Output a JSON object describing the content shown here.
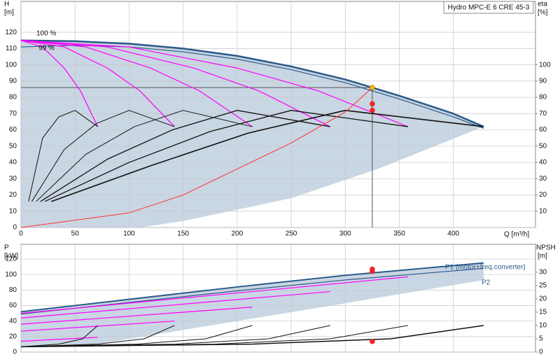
{
  "chart_data": [
    {
      "type": "line",
      "title": "Hydro MPC-E 6 CRE 45-3",
      "y_label": "H",
      "y_unit": "[m]",
      "y2_label": "eta",
      "y2_unit": "[%]",
      "x_label": "Q [m³/h]",
      "annotations": [
        "100 %",
        "99 %"
      ],
      "xlim": [
        0,
        476
      ],
      "xticks": [
        0,
        50,
        100,
        150,
        200,
        250,
        300,
        350,
        400
      ],
      "ylim": [
        0,
        139
      ],
      "yticks": [
        0,
        10,
        20,
        30,
        40,
        50,
        60,
        70,
        80,
        90,
        100,
        110,
        120
      ],
      "y2lim": [
        0,
        139
      ],
      "y2ticks": [
        10,
        20,
        30,
        40,
        50,
        60,
        70,
        80,
        90,
        100
      ],
      "grid": true,
      "area": {
        "color": "#c9d6e3",
        "x": [
          0,
          50,
          100,
          150,
          200,
          250,
          300,
          350,
          400,
          428,
          330,
          250,
          150,
          110,
          20,
          0
        ],
        "values": [
          115,
          114.5,
          113,
          110,
          105.5,
          99,
          91,
          81,
          70,
          62,
          36,
          18,
          4,
          0,
          0,
          0
        ]
      },
      "series": [
        {
          "color": "#2b5a8a",
          "width": 2.5,
          "x": [
            0,
            50,
            100,
            150,
            200,
            250,
            300,
            350,
            400,
            428
          ],
          "values": [
            115,
            114.5,
            113,
            110,
            105.5,
            99,
            91,
            81,
            70,
            62
          ]
        },
        {
          "color": "#2b5a8a",
          "width": 1.2,
          "x": [
            0,
            50,
            100,
            150,
            200,
            250,
            300,
            350,
            400,
            428
          ],
          "values": [
            111,
            112,
            111,
            108,
            103.5,
            97,
            89,
            79,
            68,
            61
          ]
        },
        {
          "color": "#ff00ff",
          "width": 1.2,
          "x": [
            0,
            20,
            40,
            55,
            71
          ],
          "values": [
            115,
            111,
            98,
            84,
            62
          ]
        },
        {
          "color": "#ff00ff",
          "width": 1.2,
          "x": [
            0,
            40,
            80,
            110,
            142
          ],
          "values": [
            115,
            111,
            98,
            84,
            62
          ]
        },
        {
          "color": "#ff00ff",
          "width": 1.2,
          "x": [
            0,
            60,
            120,
            165,
            214
          ],
          "values": [
            115,
            111,
            98,
            84,
            62
          ]
        },
        {
          "color": "#ff00ff",
          "width": 1.2,
          "x": [
            0,
            80,
            160,
            220,
            286
          ],
          "values": [
            115,
            111,
            98,
            84,
            62
          ]
        },
        {
          "color": "#ff00ff",
          "width": 1.2,
          "x": [
            0,
            100,
            200,
            275,
            358
          ],
          "values": [
            115,
            111,
            98,
            84,
            62
          ]
        },
        {
          "color": "#111111",
          "width": 1,
          "x": [
            7,
            20,
            35,
            50,
            71
          ],
          "values": [
            16,
            55,
            68,
            72,
            62
          ]
        },
        {
          "color": "#111111",
          "width": 1,
          "x": [
            10,
            40,
            70,
            100,
            142
          ],
          "values": [
            16,
            48,
            64,
            72,
            62
          ]
        },
        {
          "color": "#111111",
          "width": 1,
          "x": [
            14,
            60,
            105,
            150,
            214
          ],
          "values": [
            16,
            45,
            62,
            72,
            62
          ]
        },
        {
          "color": "#111111",
          "width": 1.3,
          "x": [
            18,
            80,
            140,
            200,
            286
          ],
          "values": [
            16,
            42,
            60,
            72,
            62
          ]
        },
        {
          "color": "#111111",
          "width": 1.3,
          "x": [
            22,
            100,
            175,
            250,
            358
          ],
          "values": [
            16,
            40,
            59,
            72,
            62
          ]
        },
        {
          "color": "#111111",
          "width": 1.6,
          "x": [
            28,
            120,
            210,
            300,
            428
          ],
          "values": [
            16,
            38,
            58,
            72,
            62
          ]
        },
        {
          "color": "#ff3030",
          "width": 1,
          "x": [
            0,
            100,
            150,
            200,
            250,
            300,
            325
          ],
          "values": [
            0,
            9,
            20,
            36,
            52,
            71,
            86
          ]
        }
      ],
      "operating_point": {
        "x": 325,
        "y": 86
      },
      "points": [
        {
          "x": 325,
          "y": 86,
          "color": "#f5b800"
        },
        {
          "x": 325,
          "y": 76,
          "color": "#ff2020"
        },
        {
          "x": 325,
          "y": 72,
          "color": "#ff2020"
        }
      ]
    },
    {
      "type": "line",
      "y_label": "P",
      "y_unit": "[kW]",
      "y2_label": "NPSH",
      "y2_unit": "[m]",
      "annotations": [
        "P1 (motor+freq.converter)",
        "P2"
      ],
      "xlim": [
        0,
        476
      ],
      "ylim": [
        0,
        139
      ],
      "yticks": [
        0,
        20,
        40,
        60,
        80,
        100,
        120
      ],
      "y2lim": [
        0,
        40.5
      ],
      "y2ticks": [
        0,
        5,
        10,
        15,
        20,
        25,
        30
      ],
      "grid": true,
      "area": {
        "color": "#c9d6e3",
        "x": [
          0,
          100,
          200,
          300,
          428,
          428,
          300,
          200,
          100,
          60,
          0
        ],
        "values": [
          52,
          68,
          84,
          99,
          115,
          93,
          63,
          40,
          17,
          8,
          8
        ]
      },
      "series": [
        {
          "color": "#2b5a8a",
          "width": 2,
          "x": [
            0,
            100,
            200,
            300,
            428
          ],
          "values": [
            52,
            68,
            84,
            99,
            115
          ]
        },
        {
          "color": "#2b5a8a",
          "width": 1.2,
          "x": [
            0,
            100,
            200,
            300,
            428
          ],
          "values": [
            49,
            64,
            79,
            93,
            108
          ]
        },
        {
          "color": "#ff00ff",
          "width": 1.2,
          "x": [
            0,
            71
          ],
          "values": [
            14,
            19
          ]
        },
        {
          "color": "#ff00ff",
          "width": 1.2,
          "x": [
            0,
            142
          ],
          "values": [
            27,
            40
          ]
        },
        {
          "color": "#ff00ff",
          "width": 1.2,
          "x": [
            0,
            214
          ],
          "values": [
            36,
            58
          ]
        },
        {
          "color": "#ff00ff",
          "width": 1.2,
          "x": [
            0,
            286
          ],
          "values": [
            44,
            78
          ]
        },
        {
          "color": "#ff00ff",
          "width": 1.2,
          "x": [
            0,
            358
          ],
          "values": [
            50,
            97
          ]
        },
        {
          "color": "#111111",
          "width": 1,
          "axis": "y2",
          "x": [
            0,
            35,
            57,
            71
          ],
          "values": [
            2,
            3,
            5,
            10
          ]
        },
        {
          "color": "#111111",
          "width": 1,
          "axis": "y2",
          "x": [
            0,
            71,
            114,
            142
          ],
          "values": [
            2,
            3,
            5,
            10
          ]
        },
        {
          "color": "#111111",
          "width": 1,
          "axis": "y2",
          "x": [
            0,
            107,
            171,
            214
          ],
          "values": [
            2,
            3,
            5,
            10
          ]
        },
        {
          "color": "#111111",
          "width": 1,
          "axis": "y2",
          "x": [
            0,
            143,
            229,
            286
          ],
          "values": [
            2,
            3,
            5,
            10
          ]
        },
        {
          "color": "#111111",
          "width": 1,
          "axis": "y2",
          "x": [
            0,
            179,
            286,
            358
          ],
          "values": [
            2,
            3,
            5,
            10
          ]
        },
        {
          "color": "#111111",
          "width": 1.5,
          "axis": "y2",
          "x": [
            0,
            214,
            342,
            428
          ],
          "values": [
            2,
            3,
            5,
            10
          ]
        }
      ],
      "points": [
        {
          "x": 325,
          "y": 107,
          "color": "#ff2020"
        },
        {
          "x": 325,
          "y": 104,
          "color": "#ff2020"
        },
        {
          "x": 325,
          "y": 4,
          "color": "#ff2020",
          "axis": "y2"
        }
      ]
    }
  ]
}
